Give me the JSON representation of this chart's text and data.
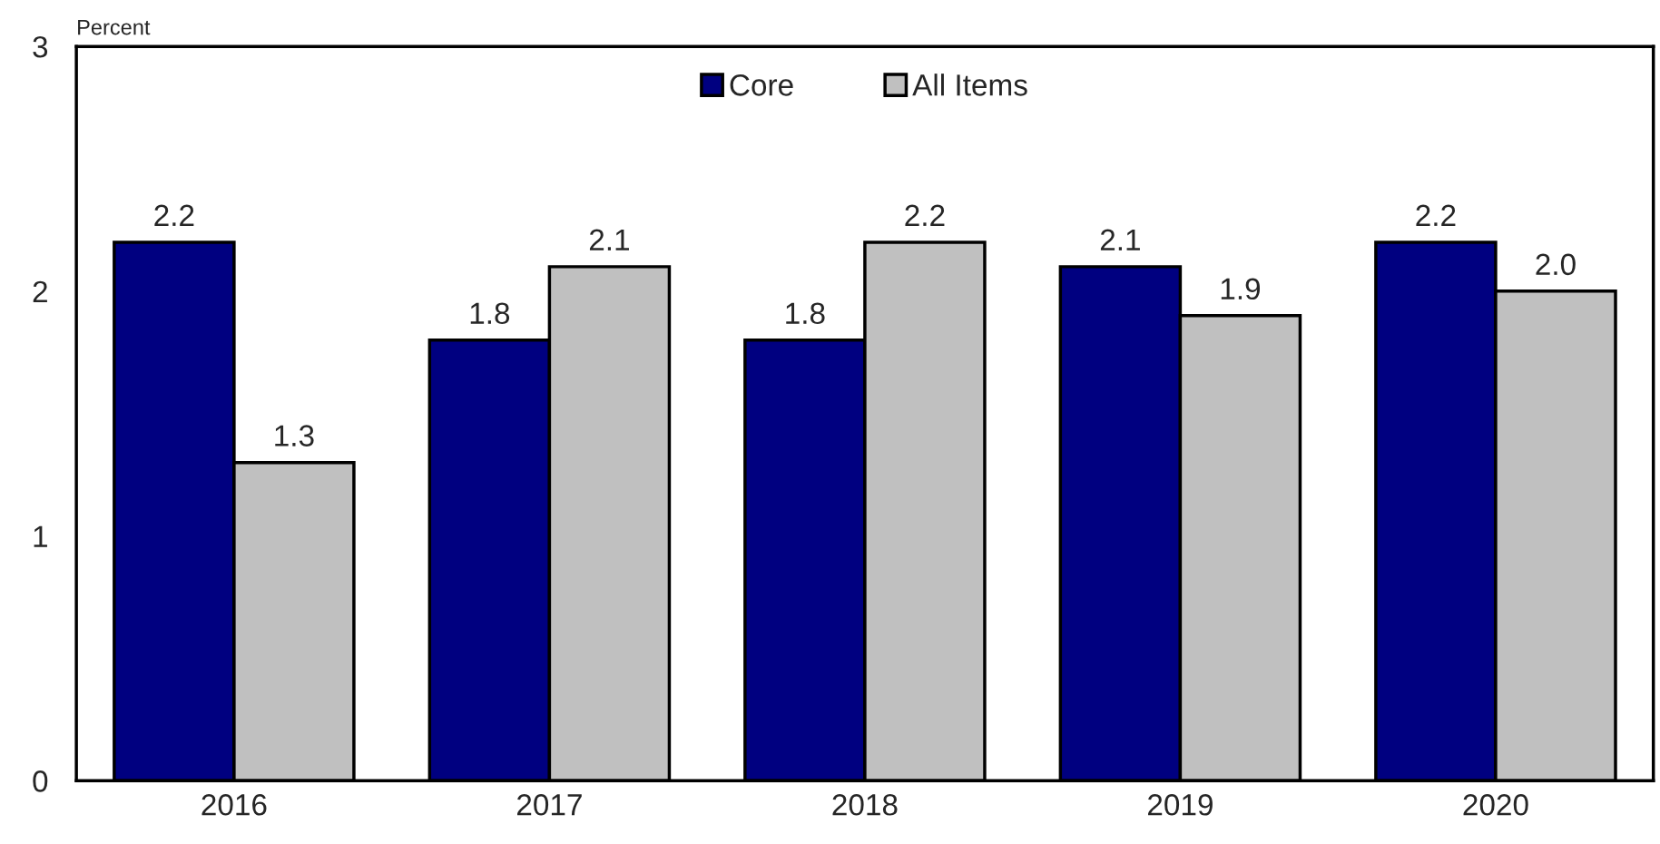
{
  "chart_data": {
    "type": "bar",
    "ylabel": "Percent",
    "categories": [
      "2016",
      "2017",
      "2018",
      "2019",
      "2020"
    ],
    "series": [
      {
        "name": "Core",
        "color": "#000080",
        "values": [
          2.2,
          1.8,
          1.8,
          2.1,
          2.2
        ],
        "value_labels": [
          "2.2",
          "1.8",
          "1.8",
          "2.1",
          "2.2"
        ]
      },
      {
        "name": "All Items",
        "color": "#c0c0c0",
        "values": [
          1.3,
          2.1,
          2.2,
          1.9,
          2.0
        ],
        "value_labels": [
          "1.3",
          "2.1",
          "2.2",
          "1.9",
          "2.0"
        ]
      }
    ],
    "ylim": [
      0,
      3
    ],
    "yticks": [
      0,
      1,
      2,
      3
    ],
    "grid": false,
    "legend": "top"
  }
}
